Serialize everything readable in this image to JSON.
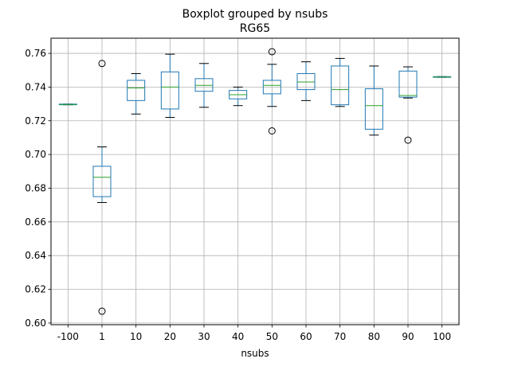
{
  "chart_data": {
    "type": "boxplot",
    "title": "Boxplot grouped by nsubs",
    "subtitle": "RG65",
    "xlabel": "nsubs",
    "ylabel": "",
    "ylim": [
      0.599,
      0.769
    ],
    "yticks": [
      "0.60",
      "0.62",
      "0.64",
      "0.66",
      "0.68",
      "0.70",
      "0.72",
      "0.74",
      "0.76"
    ],
    "grid": true,
    "colors": {
      "box": "#1f77b4",
      "median": "#2ca02c",
      "whisker": "#000000",
      "grid": "#b0b0b0"
    },
    "categories": [
      "-100",
      "1",
      "10",
      "20",
      "30",
      "40",
      "50",
      "60",
      "70",
      "80",
      "90",
      "100"
    ],
    "boxes": [
      {
        "q1": 0.7295,
        "median": 0.7297,
        "q3": 0.7299,
        "whislo": 0.7295,
        "whishi": 0.7299,
        "fliers": []
      },
      {
        "q1": 0.675,
        "median": 0.6865,
        "q3": 0.693,
        "whislo": 0.6715,
        "whishi": 0.7045,
        "fliers": [
          0.754,
          0.607
        ]
      },
      {
        "q1": 0.732,
        "median": 0.7395,
        "q3": 0.744,
        "whislo": 0.724,
        "whishi": 0.748,
        "fliers": []
      },
      {
        "q1": 0.727,
        "median": 0.74,
        "q3": 0.749,
        "whislo": 0.722,
        "whishi": 0.7595,
        "fliers": []
      },
      {
        "q1": 0.7375,
        "median": 0.741,
        "q3": 0.745,
        "whislo": 0.728,
        "whishi": 0.754,
        "fliers": []
      },
      {
        "q1": 0.733,
        "median": 0.7355,
        "q3": 0.738,
        "whislo": 0.729,
        "whishi": 0.74,
        "fliers": []
      },
      {
        "q1": 0.736,
        "median": 0.741,
        "q3": 0.744,
        "whislo": 0.7285,
        "whishi": 0.7535,
        "fliers": [
          0.761,
          0.714
        ]
      },
      {
        "q1": 0.7385,
        "median": 0.743,
        "q3": 0.748,
        "whislo": 0.732,
        "whishi": 0.755,
        "fliers": []
      },
      {
        "q1": 0.7295,
        "median": 0.7385,
        "q3": 0.7525,
        "whislo": 0.7285,
        "whishi": 0.757,
        "fliers": []
      },
      {
        "q1": 0.715,
        "median": 0.729,
        "q3": 0.739,
        "whislo": 0.7115,
        "whishi": 0.7525,
        "fliers": []
      },
      {
        "q1": 0.734,
        "median": 0.735,
        "q3": 0.7495,
        "whislo": 0.7335,
        "whishi": 0.752,
        "fliers": [
          0.7085
        ]
      },
      {
        "q1": 0.7458,
        "median": 0.746,
        "q3": 0.7462,
        "whislo": 0.7458,
        "whishi": 0.7462,
        "fliers": []
      }
    ]
  }
}
